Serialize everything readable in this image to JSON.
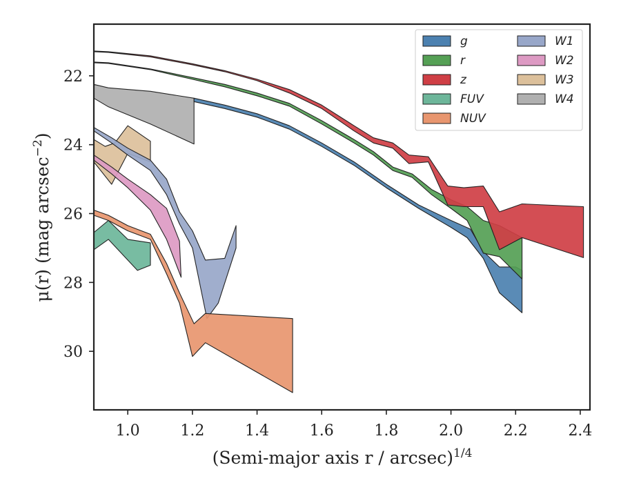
{
  "chart_data": {
    "type": "area",
    "title": "",
    "xlabel": "(Semi-major axis r / arcsec)",
    "xlabel_exponent": "1/4",
    "ylabel": "μ(r) (mag arcsec",
    "ylabel_exponent": "−2",
    "ylabel_close": ")",
    "xlim": [
      0.895,
      2.43
    ],
    "ylim": [
      31.7,
      20.5
    ],
    "y_inverted": true,
    "xticks": [
      1.0,
      1.2,
      1.4,
      1.6,
      1.8,
      2.0,
      2.2,
      2.4
    ],
    "xtick_labels": [
      "1.0",
      "1.2",
      "1.4",
      "1.6",
      "1.8",
      "2.0",
      "2.2",
      "2.4"
    ],
    "yticks": [
      22,
      24,
      26,
      28,
      30
    ],
    "ytick_labels": [
      "22",
      "24",
      "26",
      "28",
      "30"
    ],
    "grid": false,
    "legend_position": "top-right",
    "legend_columns": 2,
    "series": [
      {
        "name": "W4",
        "color": "#b0b0b0",
        "upper": [
          [
            0.895,
            22.25
          ],
          [
            0.94,
            22.35
          ],
          [
            1.07,
            22.45
          ],
          [
            1.205,
            22.65
          ]
        ],
        "lower": [
          [
            0.895,
            22.65
          ],
          [
            0.94,
            22.9
          ],
          [
            1.07,
            23.4
          ],
          [
            1.205,
            23.98
          ]
        ]
      },
      {
        "name": "g",
        "color": "#4c81b0",
        "upper": [
          [
            1.205,
            22.65
          ],
          [
            1.3,
            22.85
          ],
          [
            1.4,
            23.1
          ],
          [
            1.5,
            23.45
          ],
          [
            1.6,
            23.95
          ],
          [
            1.7,
            24.5
          ],
          [
            1.8,
            25.15
          ],
          [
            1.9,
            25.75
          ],
          [
            2.0,
            26.2
          ],
          [
            2.06,
            26.45
          ],
          [
            2.1,
            27.1
          ],
          [
            2.15,
            27.55
          ],
          [
            2.2,
            27.55
          ],
          [
            2.22,
            27.65
          ]
        ],
        "lower": [
          [
            1.205,
            22.75
          ],
          [
            1.3,
            22.95
          ],
          [
            1.4,
            23.2
          ],
          [
            1.5,
            23.55
          ],
          [
            1.6,
            24.05
          ],
          [
            1.7,
            24.6
          ],
          [
            1.8,
            25.25
          ],
          [
            1.9,
            25.85
          ],
          [
            2.0,
            26.4
          ],
          [
            2.05,
            26.7
          ],
          [
            2.1,
            27.3
          ],
          [
            2.15,
            28.3
          ],
          [
            2.22,
            28.88
          ]
        ]
      },
      {
        "name": "r",
        "color": "#55a055",
        "upper": [
          [
            0.895,
            21.6
          ],
          [
            0.94,
            21.62
          ],
          [
            1.07,
            21.8
          ],
          [
            1.2,
            22.05
          ],
          [
            1.3,
            22.25
          ],
          [
            1.4,
            22.5
          ],
          [
            1.5,
            22.8
          ],
          [
            1.6,
            23.3
          ],
          [
            1.7,
            23.85
          ],
          [
            1.76,
            24.2
          ],
          [
            1.82,
            24.65
          ],
          [
            1.88,
            24.85
          ],
          [
            1.94,
            25.3
          ],
          [
            2.0,
            25.6
          ],
          [
            2.05,
            25.8
          ],
          [
            2.1,
            26.2
          ],
          [
            2.15,
            26.35
          ],
          [
            2.22,
            26.7
          ]
        ],
        "lower": [
          [
            0.895,
            21.62
          ],
          [
            0.94,
            21.64
          ],
          [
            1.07,
            21.82
          ],
          [
            1.2,
            22.1
          ],
          [
            1.3,
            22.32
          ],
          [
            1.4,
            22.58
          ],
          [
            1.5,
            22.88
          ],
          [
            1.6,
            23.4
          ],
          [
            1.7,
            23.95
          ],
          [
            1.76,
            24.3
          ],
          [
            1.82,
            24.75
          ],
          [
            1.88,
            24.95
          ],
          [
            1.94,
            25.45
          ],
          [
            2.0,
            25.85
          ],
          [
            2.05,
            26.2
          ],
          [
            2.1,
            27.15
          ],
          [
            2.15,
            27.25
          ],
          [
            2.22,
            27.9
          ]
        ]
      },
      {
        "name": "z",
        "color": "#cf3f45",
        "upper": [
          [
            0.895,
            21.28
          ],
          [
            0.94,
            21.3
          ],
          [
            1.07,
            21.42
          ],
          [
            1.2,
            21.65
          ],
          [
            1.3,
            21.85
          ],
          [
            1.4,
            22.1
          ],
          [
            1.5,
            22.4
          ],
          [
            1.6,
            22.85
          ],
          [
            1.7,
            23.45
          ],
          [
            1.76,
            23.8
          ],
          [
            1.82,
            23.95
          ],
          [
            1.87,
            24.3
          ],
          [
            1.93,
            24.35
          ],
          [
            1.99,
            25.2
          ],
          [
            2.04,
            25.25
          ],
          [
            2.1,
            25.2
          ],
          [
            2.15,
            25.95
          ],
          [
            2.22,
            25.72
          ],
          [
            2.41,
            25.8
          ]
        ],
        "lower": [
          [
            0.895,
            21.3
          ],
          [
            0.94,
            21.32
          ],
          [
            1.07,
            21.45
          ],
          [
            1.2,
            21.68
          ],
          [
            1.3,
            21.88
          ],
          [
            1.4,
            22.14
          ],
          [
            1.5,
            22.5
          ],
          [
            1.6,
            22.95
          ],
          [
            1.7,
            23.6
          ],
          [
            1.76,
            23.95
          ],
          [
            1.82,
            24.1
          ],
          [
            1.87,
            24.55
          ],
          [
            1.93,
            24.5
          ],
          [
            1.99,
            25.75
          ],
          [
            2.04,
            25.8
          ],
          [
            2.1,
            25.8
          ],
          [
            2.15,
            27.05
          ],
          [
            2.22,
            26.7
          ],
          [
            2.41,
            27.28
          ]
        ]
      },
      {
        "name": "W3",
        "color": "#dcc09b",
        "upper": [
          [
            0.895,
            23.85
          ],
          [
            0.93,
            24.05
          ],
          [
            0.96,
            23.95
          ],
          [
            1.0,
            23.45
          ],
          [
            1.07,
            23.9
          ]
        ],
        "lower": [
          [
            0.895,
            24.5
          ],
          [
            0.95,
            25.15
          ],
          [
            1.0,
            24.25
          ],
          [
            1.07,
            24.5
          ]
        ]
      },
      {
        "name": "W1",
        "color": "#98a7c9",
        "upper": [
          [
            0.895,
            23.5
          ],
          [
            0.95,
            23.8
          ],
          [
            1.0,
            24.1
          ],
          [
            1.07,
            24.45
          ],
          [
            1.12,
            25.0
          ],
          [
            1.16,
            25.95
          ],
          [
            1.2,
            26.5
          ],
          [
            1.24,
            27.35
          ],
          [
            1.3,
            27.3
          ],
          [
            1.335,
            26.35
          ]
        ],
        "lower": [
          [
            0.895,
            23.6
          ],
          [
            0.95,
            23.95
          ],
          [
            1.0,
            24.3
          ],
          [
            1.07,
            24.75
          ],
          [
            1.12,
            25.45
          ],
          [
            1.16,
            26.3
          ],
          [
            1.2,
            27.0
          ],
          [
            1.245,
            29.05
          ],
          [
            1.28,
            28.6
          ],
          [
            1.335,
            27.0
          ]
        ]
      },
      {
        "name": "W2",
        "color": "#dd9ac3",
        "upper": [
          [
            0.895,
            24.3
          ],
          [
            0.95,
            24.65
          ],
          [
            1.0,
            25.0
          ],
          [
            1.07,
            25.45
          ],
          [
            1.12,
            25.85
          ],
          [
            1.16,
            26.8
          ]
        ],
        "lower": [
          [
            0.895,
            24.45
          ],
          [
            0.95,
            24.85
          ],
          [
            1.0,
            25.25
          ],
          [
            1.07,
            25.9
          ],
          [
            1.12,
            26.75
          ],
          [
            1.165,
            27.85
          ]
        ]
      },
      {
        "name": "NUV",
        "color": "#e8966f",
        "upper": [
          [
            0.895,
            25.9
          ],
          [
            0.94,
            26.05
          ],
          [
            1.0,
            26.35
          ],
          [
            1.07,
            26.6
          ],
          [
            1.12,
            27.45
          ],
          [
            1.16,
            28.3
          ],
          [
            1.205,
            29.2
          ],
          [
            1.24,
            28.9
          ],
          [
            1.51,
            29.05
          ]
        ],
        "lower": [
          [
            0.895,
            26.05
          ],
          [
            0.94,
            26.2
          ],
          [
            1.0,
            26.5
          ],
          [
            1.07,
            26.75
          ],
          [
            1.12,
            27.75
          ],
          [
            1.16,
            28.6
          ],
          [
            1.2,
            30.15
          ],
          [
            1.24,
            29.75
          ],
          [
            1.51,
            31.2
          ]
        ]
      },
      {
        "name": "FUV",
        "color": "#6db69a",
        "upper": [
          [
            0.895,
            26.55
          ],
          [
            0.94,
            26.2
          ],
          [
            1.0,
            26.75
          ],
          [
            1.07,
            26.85
          ]
        ],
        "lower": [
          [
            0.895,
            27.05
          ],
          [
            0.94,
            26.75
          ],
          [
            1.03,
            27.65
          ],
          [
            1.07,
            27.5
          ]
        ]
      }
    ],
    "legend": [
      {
        "name": "g",
        "series": "g"
      },
      {
        "name": "r",
        "series": "r"
      },
      {
        "name": "z",
        "series": "z"
      },
      {
        "name": "FUV",
        "series": "FUV"
      },
      {
        "name": "NUV",
        "series": "NUV"
      },
      {
        "name": "W1",
        "series": "W1"
      },
      {
        "name": "W2",
        "series": "W2"
      },
      {
        "name": "W3",
        "series": "W3"
      },
      {
        "name": "W4",
        "series": "W4"
      }
    ]
  }
}
